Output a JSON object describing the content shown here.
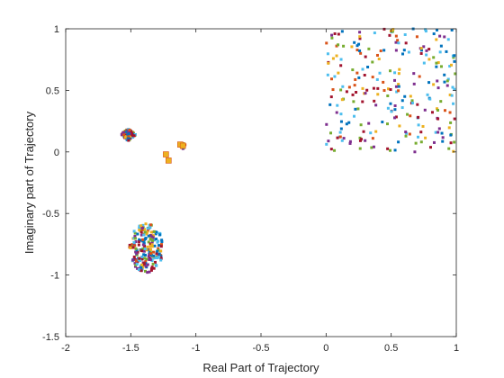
{
  "chart_data": {
    "type": "scatter",
    "title": "",
    "xlabel": "Real Part of Trajectory",
    "ylabel": "Imaginary part of Trajectory",
    "xlim": [
      -2,
      1
    ],
    "ylim": [
      -1.5,
      1
    ],
    "xticks": [
      -2,
      -1.5,
      -1,
      -0.5,
      0,
      0.5,
      1
    ],
    "xtick_labels": [
      "-2",
      "-1.5",
      "-1",
      "-0.5",
      "0",
      "0.5",
      "1"
    ],
    "yticks": [
      -1.5,
      -1,
      -0.5,
      0,
      0.5,
      1
    ],
    "ytick_labels": [
      "-1.5",
      "-1",
      "-0.5",
      "0",
      "0.5",
      "1"
    ],
    "grid": false,
    "legend": "none",
    "colors": [
      "#0072BD",
      "#D95319",
      "#EDB120",
      "#7E2F8E",
      "#77AC30",
      "#4DBEEE",
      "#A2142F"
    ],
    "clusters": [
      {
        "center": [
          -1.52,
          0.14
        ],
        "spread": [
          0.06,
          0.05
        ],
        "count": 150,
        "shape": "diamond"
      },
      {
        "center": [
          -1.1,
          0.05
        ],
        "spread": [
          0.025,
          0.025
        ],
        "count": 30,
        "shape": "diamond"
      },
      {
        "center": [
          -1.38,
          -0.78
        ],
        "spread": [
          0.13,
          0.2
        ],
        "count": 220,
        "shape": "disk"
      },
      {
        "center": [
          0.5,
          0.45
        ],
        "spread": [
          0.5,
          0.55
        ],
        "count": 260,
        "shape": "box",
        "xrange": [
          0,
          1
        ],
        "yrange": [
          0.0,
          1.0
        ]
      }
    ],
    "points": [
      {
        "x": -1.23,
        "y": -0.02,
        "color": "#EDB120"
      },
      {
        "x": -1.21,
        "y": -0.07,
        "color": "#EDB120"
      },
      {
        "x": -1.12,
        "y": 0.06,
        "color": "#EDB120"
      },
      {
        "x": -1.1,
        "y": 0.05,
        "color": "#EDB120"
      }
    ]
  }
}
